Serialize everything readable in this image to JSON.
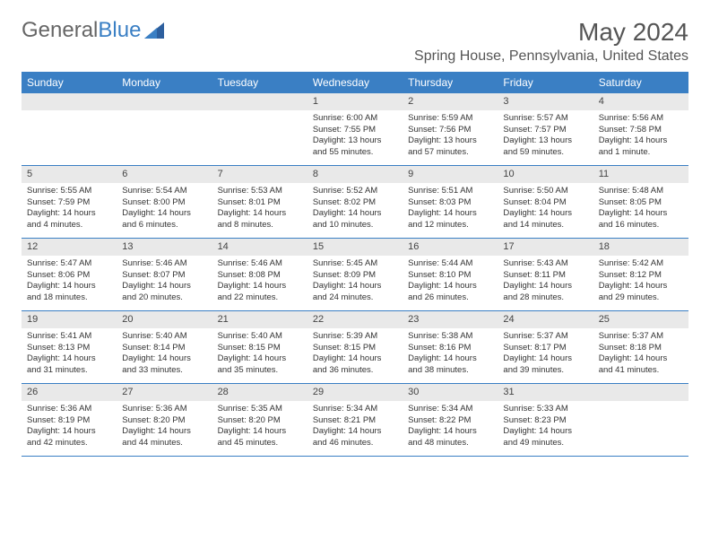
{
  "logo": {
    "part1": "General",
    "part2": "Blue"
  },
  "title": "May 2024",
  "location": "Spring House, Pennsylvania, United States",
  "day_headers": [
    "Sunday",
    "Monday",
    "Tuesday",
    "Wednesday",
    "Thursday",
    "Friday",
    "Saturday"
  ],
  "colors": {
    "header_bg": "#3a7fc4",
    "header_text": "#ffffff",
    "daynum_bg": "#e9e9e9",
    "border": "#3a7fc4",
    "text": "#333333",
    "title_text": "#555555"
  },
  "weeks": [
    [
      {
        "day": "",
        "sunrise": "",
        "sunset": "",
        "daylight": ""
      },
      {
        "day": "",
        "sunrise": "",
        "sunset": "",
        "daylight": ""
      },
      {
        "day": "",
        "sunrise": "",
        "sunset": "",
        "daylight": ""
      },
      {
        "day": "1",
        "sunrise": "Sunrise: 6:00 AM",
        "sunset": "Sunset: 7:55 PM",
        "daylight": "Daylight: 13 hours and 55 minutes."
      },
      {
        "day": "2",
        "sunrise": "Sunrise: 5:59 AM",
        "sunset": "Sunset: 7:56 PM",
        "daylight": "Daylight: 13 hours and 57 minutes."
      },
      {
        "day": "3",
        "sunrise": "Sunrise: 5:57 AM",
        "sunset": "Sunset: 7:57 PM",
        "daylight": "Daylight: 13 hours and 59 minutes."
      },
      {
        "day": "4",
        "sunrise": "Sunrise: 5:56 AM",
        "sunset": "Sunset: 7:58 PM",
        "daylight": "Daylight: 14 hours and 1 minute."
      }
    ],
    [
      {
        "day": "5",
        "sunrise": "Sunrise: 5:55 AM",
        "sunset": "Sunset: 7:59 PM",
        "daylight": "Daylight: 14 hours and 4 minutes."
      },
      {
        "day": "6",
        "sunrise": "Sunrise: 5:54 AM",
        "sunset": "Sunset: 8:00 PM",
        "daylight": "Daylight: 14 hours and 6 minutes."
      },
      {
        "day": "7",
        "sunrise": "Sunrise: 5:53 AM",
        "sunset": "Sunset: 8:01 PM",
        "daylight": "Daylight: 14 hours and 8 minutes."
      },
      {
        "day": "8",
        "sunrise": "Sunrise: 5:52 AM",
        "sunset": "Sunset: 8:02 PM",
        "daylight": "Daylight: 14 hours and 10 minutes."
      },
      {
        "day": "9",
        "sunrise": "Sunrise: 5:51 AM",
        "sunset": "Sunset: 8:03 PM",
        "daylight": "Daylight: 14 hours and 12 minutes."
      },
      {
        "day": "10",
        "sunrise": "Sunrise: 5:50 AM",
        "sunset": "Sunset: 8:04 PM",
        "daylight": "Daylight: 14 hours and 14 minutes."
      },
      {
        "day": "11",
        "sunrise": "Sunrise: 5:48 AM",
        "sunset": "Sunset: 8:05 PM",
        "daylight": "Daylight: 14 hours and 16 minutes."
      }
    ],
    [
      {
        "day": "12",
        "sunrise": "Sunrise: 5:47 AM",
        "sunset": "Sunset: 8:06 PM",
        "daylight": "Daylight: 14 hours and 18 minutes."
      },
      {
        "day": "13",
        "sunrise": "Sunrise: 5:46 AM",
        "sunset": "Sunset: 8:07 PM",
        "daylight": "Daylight: 14 hours and 20 minutes."
      },
      {
        "day": "14",
        "sunrise": "Sunrise: 5:46 AM",
        "sunset": "Sunset: 8:08 PM",
        "daylight": "Daylight: 14 hours and 22 minutes."
      },
      {
        "day": "15",
        "sunrise": "Sunrise: 5:45 AM",
        "sunset": "Sunset: 8:09 PM",
        "daylight": "Daylight: 14 hours and 24 minutes."
      },
      {
        "day": "16",
        "sunrise": "Sunrise: 5:44 AM",
        "sunset": "Sunset: 8:10 PM",
        "daylight": "Daylight: 14 hours and 26 minutes."
      },
      {
        "day": "17",
        "sunrise": "Sunrise: 5:43 AM",
        "sunset": "Sunset: 8:11 PM",
        "daylight": "Daylight: 14 hours and 28 minutes."
      },
      {
        "day": "18",
        "sunrise": "Sunrise: 5:42 AM",
        "sunset": "Sunset: 8:12 PM",
        "daylight": "Daylight: 14 hours and 29 minutes."
      }
    ],
    [
      {
        "day": "19",
        "sunrise": "Sunrise: 5:41 AM",
        "sunset": "Sunset: 8:13 PM",
        "daylight": "Daylight: 14 hours and 31 minutes."
      },
      {
        "day": "20",
        "sunrise": "Sunrise: 5:40 AM",
        "sunset": "Sunset: 8:14 PM",
        "daylight": "Daylight: 14 hours and 33 minutes."
      },
      {
        "day": "21",
        "sunrise": "Sunrise: 5:40 AM",
        "sunset": "Sunset: 8:15 PM",
        "daylight": "Daylight: 14 hours and 35 minutes."
      },
      {
        "day": "22",
        "sunrise": "Sunrise: 5:39 AM",
        "sunset": "Sunset: 8:15 PM",
        "daylight": "Daylight: 14 hours and 36 minutes."
      },
      {
        "day": "23",
        "sunrise": "Sunrise: 5:38 AM",
        "sunset": "Sunset: 8:16 PM",
        "daylight": "Daylight: 14 hours and 38 minutes."
      },
      {
        "day": "24",
        "sunrise": "Sunrise: 5:37 AM",
        "sunset": "Sunset: 8:17 PM",
        "daylight": "Daylight: 14 hours and 39 minutes."
      },
      {
        "day": "25",
        "sunrise": "Sunrise: 5:37 AM",
        "sunset": "Sunset: 8:18 PM",
        "daylight": "Daylight: 14 hours and 41 minutes."
      }
    ],
    [
      {
        "day": "26",
        "sunrise": "Sunrise: 5:36 AM",
        "sunset": "Sunset: 8:19 PM",
        "daylight": "Daylight: 14 hours and 42 minutes."
      },
      {
        "day": "27",
        "sunrise": "Sunrise: 5:36 AM",
        "sunset": "Sunset: 8:20 PM",
        "daylight": "Daylight: 14 hours and 44 minutes."
      },
      {
        "day": "28",
        "sunrise": "Sunrise: 5:35 AM",
        "sunset": "Sunset: 8:20 PM",
        "daylight": "Daylight: 14 hours and 45 minutes."
      },
      {
        "day": "29",
        "sunrise": "Sunrise: 5:34 AM",
        "sunset": "Sunset: 8:21 PM",
        "daylight": "Daylight: 14 hours and 46 minutes."
      },
      {
        "day": "30",
        "sunrise": "Sunrise: 5:34 AM",
        "sunset": "Sunset: 8:22 PM",
        "daylight": "Daylight: 14 hours and 48 minutes."
      },
      {
        "day": "31",
        "sunrise": "Sunrise: 5:33 AM",
        "sunset": "Sunset: 8:23 PM",
        "daylight": "Daylight: 14 hours and 49 minutes."
      },
      {
        "day": "",
        "sunrise": "",
        "sunset": "",
        "daylight": ""
      }
    ]
  ]
}
